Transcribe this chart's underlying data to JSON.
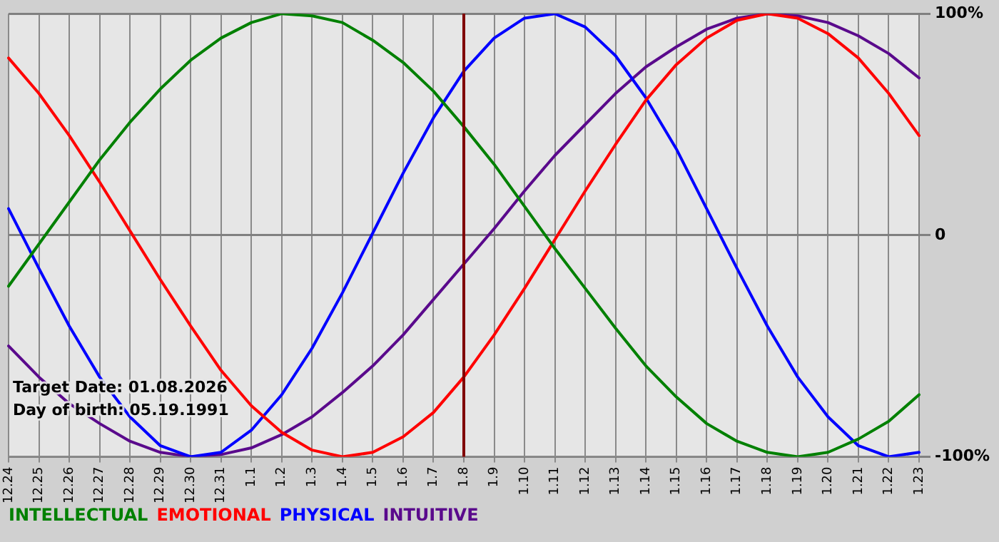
{
  "chart_data": {
    "type": "line",
    "categories": [
      "12.24",
      "12.25",
      "12.26",
      "12.27",
      "12.28",
      "12.29",
      "12.30",
      "12.31",
      "1.1",
      "1.2",
      "1.3",
      "1.4",
      "1.5",
      "1.6",
      "1.7",
      "1.8",
      "1.9",
      "1.10",
      "1.11",
      "1.12",
      "1.13",
      "1.14",
      "1.15",
      "1.16",
      "1.17",
      "1.18",
      "1.19",
      "1.20",
      "1.21",
      "1.22",
      "1.23"
    ],
    "series": [
      {
        "name": "INTELLECTUAL",
        "color": "#008000",
        "values": [
          -23,
          -4,
          15,
          34,
          51,
          66,
          79,
          89,
          96,
          100,
          99,
          96,
          88,
          78,
          65,
          49,
          32,
          13,
          -6,
          -24,
          -42,
          -59,
          -73,
          -85,
          -93,
          -98,
          -100,
          -98,
          -92,
          -84,
          -72
        ]
      },
      {
        "name": "EMOTIONAL",
        "color": "#ff0000",
        "values": [
          80,
          64,
          45,
          24,
          2,
          -20,
          -41,
          -61,
          -77,
          -89,
          -97,
          -100,
          -98,
          -91,
          -80,
          -64,
          -45,
          -24,
          -2,
          20,
          41,
          61,
          77,
          89,
          97,
          100,
          98,
          91,
          80,
          64,
          45
        ]
      },
      {
        "name": "PHYSICAL",
        "color": "#0000ff",
        "values": [
          12,
          -15,
          -41,
          -64,
          -82,
          -95,
          -100,
          -98,
          -88,
          -72,
          -51,
          -26,
          1,
          28,
          53,
          74,
          89,
          98,
          100,
          94,
          81,
          62,
          39,
          12,
          -15,
          -41,
          -64,
          -82,
          -95,
          -100,
          -98
        ]
      },
      {
        "name": "INTUITIVE",
        "color": "#5a0a8c",
        "values": [
          -50,
          -64,
          -76,
          -85,
          -93,
          -98,
          -100,
          -99,
          -96,
          -90,
          -82,
          -71,
          -59,
          -45,
          -29,
          -13,
          3,
          20,
          36,
          50,
          64,
          76,
          85,
          93,
          98,
          100,
          99,
          96,
          90,
          82,
          71
        ]
      }
    ],
    "ylim": [
      -100,
      100
    ],
    "yticks": [
      {
        "value": 100,
        "label": "100%"
      },
      0,
      {
        "value": -100,
        "label": "-100%"
      }
    ],
    "grid": true,
    "legend": "bottom left",
    "marker": "none",
    "line_style": "solid",
    "ref_lines": [
      {
        "axis": "x",
        "value": "1.8",
        "color": "#800000"
      }
    ],
    "annotations": [
      "Target Date: 01.08.2026",
      "Day of birth: 05.19.1991"
    ]
  }
}
